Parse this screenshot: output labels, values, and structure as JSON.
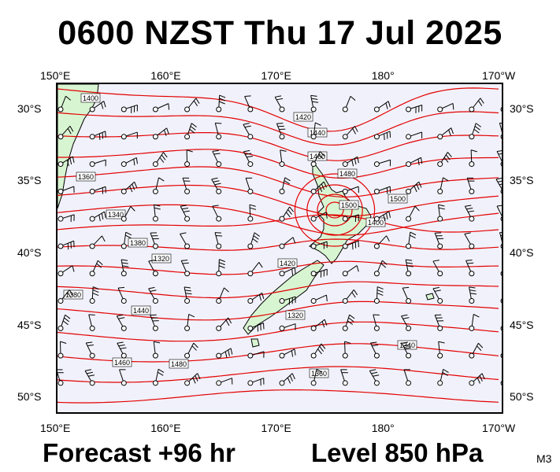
{
  "header": {
    "title": "0600 NZST Thu 17 Jul 2025"
  },
  "footer": {
    "forecast": "Forecast +96 hr",
    "level": "Level 850 hPa",
    "model_code": "M3"
  },
  "map": {
    "projection_extent": {
      "lon_min": 150,
      "lon_max": 190.5,
      "lat_min": -51.2,
      "lat_max": -28.2
    },
    "lon_ticks": [
      {
        "lon": 150,
        "label": "150°E"
      },
      {
        "lon": 160,
        "label": "160°E"
      },
      {
        "lon": 170,
        "label": "170°E"
      },
      {
        "lon": 180,
        "label": "180°"
      },
      {
        "lon": 190,
        "label": "170°W"
      }
    ],
    "lat_ticks": [
      {
        "lat": -30,
        "label": "30°S"
      },
      {
        "lat": -35,
        "label": "35°S"
      },
      {
        "lat": -40,
        "label": "40°S"
      },
      {
        "lat": -45,
        "label": "45°S"
      },
      {
        "lat": -50,
        "label": "50°S"
      }
    ],
    "colors": {
      "ocean": "#f1f1fb",
      "land": "#d8f5d2",
      "contour": "#e30000",
      "coast": "#000000",
      "wind": "#000000"
    },
    "contour_labels": [
      "1400",
      "1420",
      "1440",
      "1460",
      "1480",
      "1360",
      "1340",
      "1380",
      "1320",
      "1500"
    ]
  }
}
